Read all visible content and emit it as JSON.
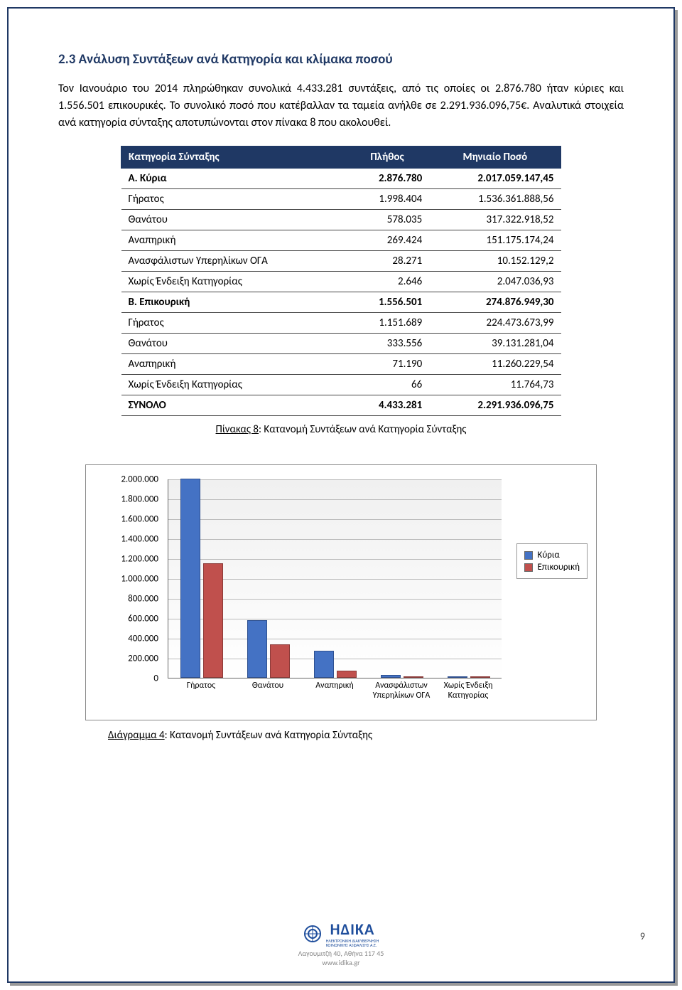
{
  "section": {
    "title": "2.3 Ανάλυση Συντάξεων ανά Κατηγορία και κλίμακα ποσού",
    "paragraph": "Τον Ιανουάριο του 2014 πληρώθηκαν συνολικά 4.433.281 συντάξεις, από τις οποίες οι 2.876.780 ήταν κύριες και 1.556.501 επικουρικές. Το συνολικό ποσό που κατέβαλλαν τα ταμεία ανήλθε σε 2.291.936.096,75€. Αναλυτικά στοιχεία ανά κατηγορία σύνταξης αποτυπώνονται στον πίνακα 8 που ακολουθεί."
  },
  "table": {
    "headers": [
      "Κατηγορία Σύνταξης",
      "Πλήθος",
      "Μηνιαίο Ποσό"
    ],
    "rows": [
      {
        "c": [
          "Α. Κύρια",
          "2.876.780",
          "2.017.059.147,45"
        ],
        "bold": true
      },
      {
        "c": [
          "Γήρατος",
          "1.998.404",
          "1.536.361.888,56"
        ],
        "bold": false
      },
      {
        "c": [
          "Θανάτου",
          "578.035",
          "317.322.918,52"
        ],
        "bold": false
      },
      {
        "c": [
          "Αναπηρική",
          "269.424",
          "151.175.174,24"
        ],
        "bold": false
      },
      {
        "c": [
          "Ανασφάλιστων Υπερηλίκων ΟΓΑ",
          "28.271",
          "10.152.129,2"
        ],
        "bold": false
      },
      {
        "c": [
          "Χωρίς Ένδειξη Κατηγορίας",
          "2.646",
          "2.047.036,93"
        ],
        "bold": false
      },
      {
        "c": [
          "Β. Επικουρική",
          "1.556.501",
          "274.876.949,30"
        ],
        "bold": true
      },
      {
        "c": [
          "Γήρατος",
          "1.151.689",
          "224.473.673,99"
        ],
        "bold": false
      },
      {
        "c": [
          "Θανάτου",
          "333.556",
          "39.131.281,04"
        ],
        "bold": false
      },
      {
        "c": [
          "Αναπηρική",
          "71.190",
          "11.260.229,54"
        ],
        "bold": false
      },
      {
        "c": [
          "Χωρίς Ένδειξη Κατηγορίας",
          "66",
          "11.764,73"
        ],
        "bold": false
      },
      {
        "c": [
          "ΣΥΝΟΛΟ",
          "4.433.281",
          "2.291.936.096,75"
        ],
        "bold": true
      }
    ],
    "caption_label": "Πίνακας 8",
    "caption_text": ": Κατανομή Συντάξεων ανά Κατηγορία Σύνταξης"
  },
  "chart": {
    "type": "bar",
    "y_ticks": [
      "0",
      "200.000",
      "400.000",
      "600.000",
      "800.000",
      "1.000.000",
      "1.200.000",
      "1.400.000",
      "1.600.000",
      "1.800.000",
      "2.000.000"
    ],
    "y_max": 2000000,
    "categories": [
      "Γήρατος",
      "Θανάτου",
      "Αναπηρική",
      "Ανασφάλιστων Υπερηλίκων ΟΓΑ",
      "Χωρίς Ένδειξη Κατηγορίας"
    ],
    "series": [
      {
        "name": "Κύρια",
        "color": "#4472c4",
        "values": [
          1998404,
          578035,
          269424,
          28271,
          2646
        ]
      },
      {
        "name": "Επικουρική",
        "color": "#c0504d",
        "values": [
          1151689,
          333556,
          71190,
          0,
          66
        ]
      }
    ],
    "caption_label": "Διάγραμμα 4",
    "caption_text": ": Κατανομή Συντάξεων ανά Κατηγορία Σύνταξης"
  },
  "footer": {
    "logo": "ΗΔΙΚΑ",
    "logo_sub1": "ΗΛΕΚΤΡΟΝΙΚΗ ΔΙΑΚΥΒΕΡΝΗΣΗ",
    "logo_sub2": "ΚΟΙΝΩΝΙΚΗΣ ΑΣΦΑΛΙΣΗΣ Α.Ε.",
    "address": "Λαγουμιτζή 40, Αθήνα 117 45",
    "url": "www.idika.gr",
    "page_number": "9"
  }
}
